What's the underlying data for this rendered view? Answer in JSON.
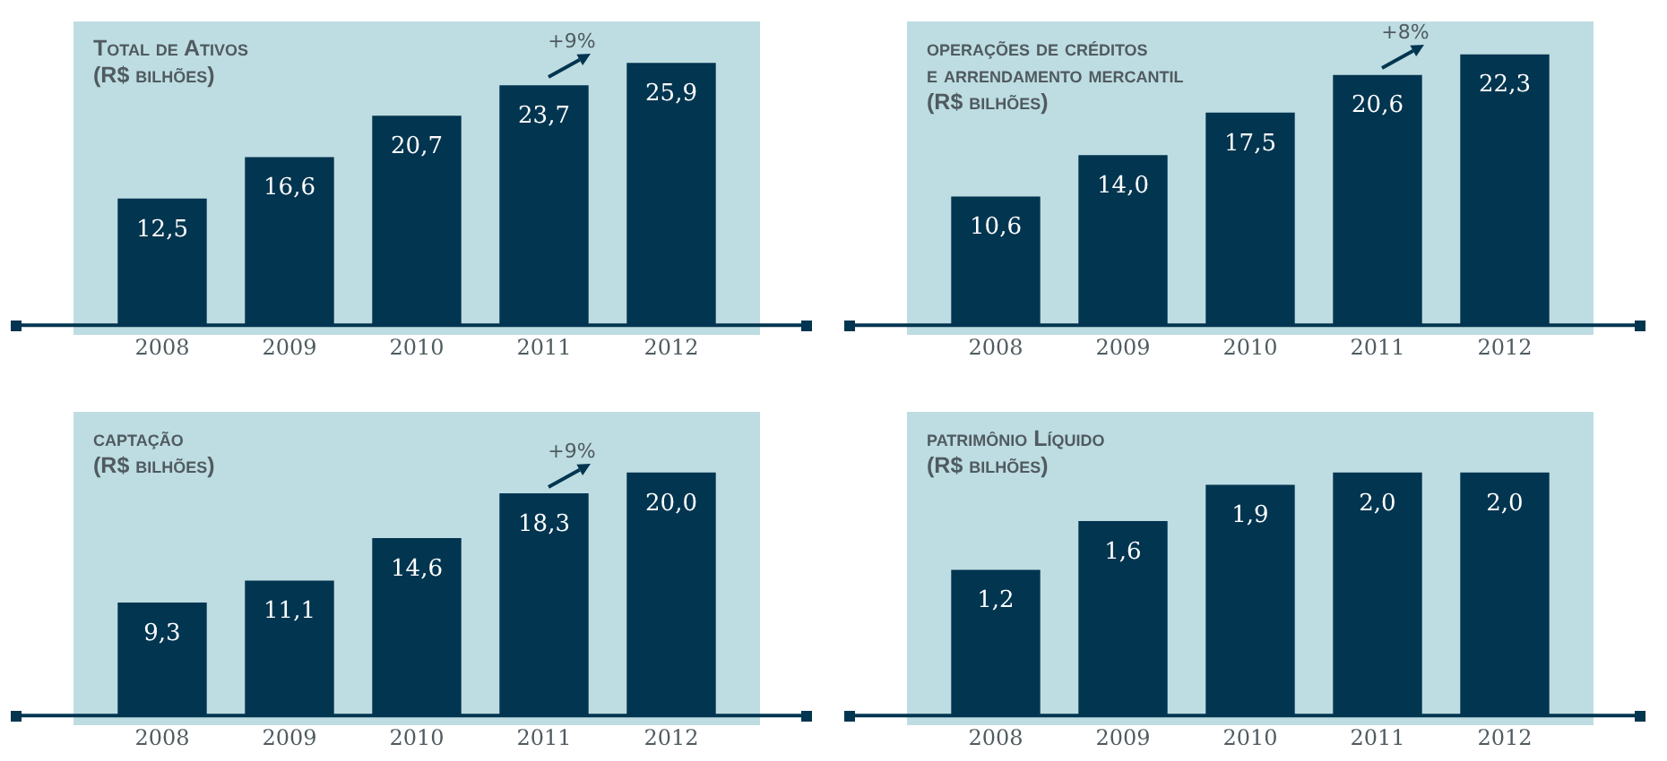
{
  "chart_data": [
    {
      "type": "bar",
      "title": "Total de Ativos\n(R$ bilhões)",
      "categories": [
        "2008",
        "2009",
        "2010",
        "2011",
        "2012"
      ],
      "values": [
        12.5,
        16.6,
        20.7,
        23.7,
        25.9
      ],
      "value_labels": [
        "12,5",
        "16,6",
        "20,7",
        "23,7",
        "25,9"
      ],
      "color": "#023550",
      "annotations": [
        "+9%"
      ],
      "grid": false,
      "legend": false,
      "tick_labels": "x"
    },
    {
      "type": "bar",
      "title": "operações de créditos\ne arrendamento mercantil\n(R$ bilhões)",
      "categories": [
        "2008",
        "2009",
        "2010",
        "2011",
        "2012"
      ],
      "values": [
        10.6,
        14.0,
        17.5,
        20.6,
        22.3
      ],
      "value_labels": [
        "10,6",
        "14,0",
        "17,5",
        "20,6",
        "22,3"
      ],
      "color": "#023550",
      "annotations": [
        "+8%"
      ],
      "grid": false,
      "legend": false,
      "tick_labels": "x"
    },
    {
      "type": "bar",
      "title": "captação\n(R$ bilhões)",
      "categories": [
        "2008",
        "2009",
        "2010",
        "2011",
        "2012"
      ],
      "values": [
        9.3,
        11.1,
        14.6,
        18.3,
        20.0
      ],
      "value_labels": [
        "9,3",
        "11,1",
        "14,6",
        "18,3",
        "20,0"
      ],
      "color": "#023550",
      "annotations": [
        "+9%"
      ],
      "grid": false,
      "legend": false,
      "tick_labels": "x"
    },
    {
      "type": "bar",
      "title": "patrimônio Líquido\n(R$ bilhões)",
      "categories": [
        "2008",
        "2009",
        "2010",
        "2011",
        "2012"
      ],
      "values": [
        1.2,
        1.6,
        1.9,
        2.0,
        2.0
      ],
      "value_labels": [
        "1,2",
        "1,6",
        "1,9",
        "2,0",
        "2,0"
      ],
      "color": "#023550",
      "grid": false,
      "legend": false,
      "tick_labels": "x"
    }
  ]
}
